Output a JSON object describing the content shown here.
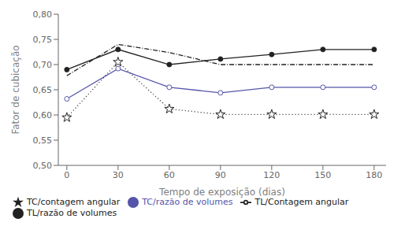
{
  "chart_data": {
    "type": "line",
    "x": [
      0,
      30,
      60,
      90,
      120,
      150,
      180
    ],
    "xlabel": "Tempo de exposição (dias)",
    "ylabel": "Fator de cubicação",
    "xlim": [
      -5,
      187
    ],
    "xticks": [
      0,
      30,
      60,
      90,
      120,
      150,
      180
    ],
    "ylim": [
      0.5,
      0.8
    ],
    "yticks": [
      {
        "value": 0.5,
        "label": "0,50"
      },
      {
        "value": 0.55,
        "label": "0,55"
      },
      {
        "value": 0.6,
        "label": "0,60"
      },
      {
        "value": 0.65,
        "label": "0,65"
      },
      {
        "value": 0.7,
        "label": "0,70"
      },
      {
        "value": 0.75,
        "label": "0,75"
      },
      {
        "value": 0.8,
        "label": "0,80"
      }
    ],
    "grid": false,
    "legend": "lower left",
    "series": [
      {
        "name": "TC/razão de volumes",
        "color": "#5555aa",
        "marker": "circle_open",
        "line_style": "solid",
        "values": [
          0.632,
          0.692,
          0.655,
          0.644,
          0.655,
          0.655,
          0.655
        ]
      },
      {
        "name": "TL/razão de volumes",
        "color": "#222222",
        "marker": "circle",
        "line_style": "solid",
        "values": [
          0.69,
          0.73,
          0.7,
          0.711,
          0.72,
          0.73,
          0.73
        ]
      },
      {
        "name": "TL/Contagem angular",
        "color": "#222222",
        "marker": "none",
        "line_style": "dashdot",
        "values": [
          0.678,
          0.74,
          0.724,
          0.7,
          0.7,
          0.7,
          0.7
        ]
      },
      {
        "name": "TC/contagem angular",
        "color": "#222222",
        "marker": "star",
        "line_style": "dotted",
        "values": [
          0.595,
          0.705,
          0.612,
          0.601,
          0.601,
          0.601,
          0.601
        ]
      }
    ]
  }
}
